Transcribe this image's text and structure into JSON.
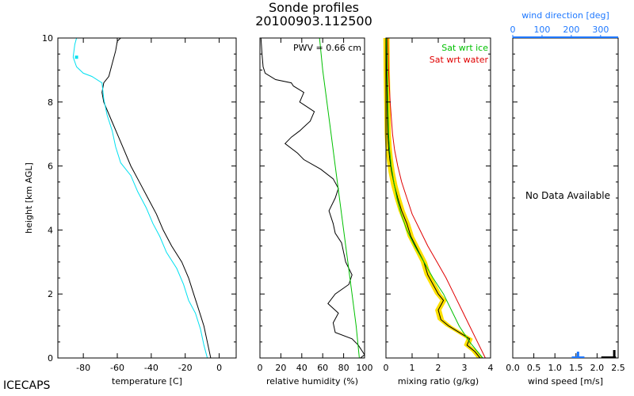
{
  "figure": {
    "title_line1": "Sonde profiles",
    "title_line2": "20100903.112500",
    "branding": "ICECAPS",
    "y_axis_label": "height [km AGL]",
    "y_ticks": [
      "0",
      "2",
      "4",
      "6",
      "8",
      "10"
    ]
  },
  "colors": {
    "temperature": "#000000",
    "dewpoint": "#00e0f0",
    "rh": "#000000",
    "rh_ice": "#00c000",
    "mixing_ratio": "#000000",
    "sat_ice": "#00c000",
    "sat_water": "#e00000",
    "uncertainty": "#ffe000",
    "wind_direction": "#1e78ff",
    "wind_speed": "#000000"
  },
  "chart_data": [
    {
      "type": "line",
      "id": "temperature",
      "xlabel": "temperature [C]",
      "ylabel": "height [km AGL]",
      "xlim": [
        -95,
        10
      ],
      "ylim": [
        0,
        10
      ],
      "x_ticks": [
        "-80",
        "-60",
        "-40",
        "-20",
        "0"
      ],
      "x_tick_values": [
        -80,
        -60,
        -40,
        -20,
        0
      ],
      "series": [
        {
          "key": "temperature",
          "points": [
            [
              -5,
              0
            ],
            [
              -7,
              0.5
            ],
            [
              -9,
              1
            ],
            [
              -12,
              1.5
            ],
            [
              -15,
              2
            ],
            [
              -18,
              2.5
            ],
            [
              -22,
              3
            ],
            [
              -28,
              3.5
            ],
            [
              -33,
              4
            ],
            [
              -37,
              4.5
            ],
            [
              -42,
              5
            ],
            [
              -47,
              5.5
            ],
            [
              -52,
              6
            ],
            [
              -56,
              6.5
            ],
            [
              -60,
              7
            ],
            [
              -64,
              7.5
            ],
            [
              -68,
              8
            ],
            [
              -69,
              8.3
            ],
            [
              -68,
              8.6
            ],
            [
              -65,
              8.8
            ],
            [
              -63,
              9.2
            ],
            [
              -61,
              9.6
            ],
            [
              -60,
              9.9
            ],
            [
              -58,
              10
            ]
          ]
        },
        {
          "key": "dewpoint",
          "points": [
            [
              -7,
              0
            ],
            [
              -9,
              0.4
            ],
            [
              -11,
              0.9
            ],
            [
              -14,
              1.4
            ],
            [
              -18,
              1.8
            ],
            [
              -21,
              2.3
            ],
            [
              -25,
              2.8
            ],
            [
              -31,
              3.3
            ],
            [
              -35,
              3.8
            ],
            [
              -39,
              4.2
            ],
            [
              -43,
              4.7
            ],
            [
              -48,
              5.2
            ],
            [
              -52,
              5.7
            ],
            [
              -58,
              6.1
            ],
            [
              -61,
              6.6
            ],
            [
              -63,
              7.1
            ],
            [
              -66,
              7.6
            ],
            [
              -68,
              8.1
            ],
            [
              -69,
              8.6
            ],
            [
              -75,
              8.8
            ],
            [
              -80,
              8.9
            ],
            [
              -84,
              9.1
            ],
            [
              -86,
              9.4
            ],
            [
              -85,
              9.8
            ],
            [
              -84,
              10
            ]
          ]
        }
      ]
    },
    {
      "type": "line",
      "id": "relative_humidity",
      "xlabel": "relative humidity (%)",
      "ylabel": "",
      "xlim": [
        0,
        100
      ],
      "ylim": [
        0,
        10
      ],
      "x_ticks": [
        "0",
        "20",
        "40",
        "60",
        "80",
        "100"
      ],
      "x_tick_values": [
        0,
        20,
        40,
        60,
        80,
        100
      ],
      "annotation": "PWV = 0.66 cm",
      "series": [
        {
          "key": "rh",
          "points": [
            [
              96,
              0
            ],
            [
              100,
              0.1
            ],
            [
              98,
              0.2
            ],
            [
              94,
              0.4
            ],
            [
              88,
              0.6
            ],
            [
              72,
              0.8
            ],
            [
              70,
              1.1
            ],
            [
              75,
              1.4
            ],
            [
              65,
              1.7
            ],
            [
              72,
              2
            ],
            [
              85,
              2.3
            ],
            [
              88,
              2.6
            ],
            [
              82,
              3
            ],
            [
              80,
              3.3
            ],
            [
              78,
              3.6
            ],
            [
              72,
              3.9
            ],
            [
              70,
              4.2
            ],
            [
              66,
              4.6
            ],
            [
              72,
              5
            ],
            [
              75,
              5.3
            ],
            [
              70,
              5.6
            ],
            [
              58,
              5.9
            ],
            [
              42,
              6.2
            ],
            [
              36,
              6.4
            ],
            [
              24,
              6.7
            ],
            [
              30,
              6.9
            ],
            [
              38,
              7.1
            ],
            [
              48,
              7.4
            ],
            [
              52,
              7.7
            ],
            [
              38,
              8
            ],
            [
              42,
              8.3
            ],
            [
              32,
              8.5
            ],
            [
              30,
              8.6
            ],
            [
              15,
              8.7
            ],
            [
              5,
              8.9
            ],
            [
              3,
              9.1
            ],
            [
              2,
              9.5
            ],
            [
              1,
              10
            ]
          ]
        },
        {
          "key": "rh_ice",
          "points": [
            [
              95,
              0
            ],
            [
              92,
              1
            ],
            [
              88,
              2
            ],
            [
              84,
              3
            ],
            [
              80,
              4
            ],
            [
              76,
              5
            ],
            [
              72,
              6
            ],
            [
              68,
              7
            ],
            [
              64,
              8
            ],
            [
              60,
              9
            ],
            [
              57,
              10
            ]
          ]
        }
      ]
    },
    {
      "type": "line",
      "id": "mixing_ratio",
      "xlabel": "mixing ratio (g/kg)",
      "ylabel": "",
      "xlim": [
        0,
        4
      ],
      "ylim": [
        0,
        10
      ],
      "x_ticks": [
        "0",
        "1",
        "2",
        "3",
        "4"
      ],
      "x_tick_values": [
        0,
        1,
        2,
        3,
        4
      ],
      "legend": [
        "Sat wrt ice",
        "Sat wrt water"
      ],
      "series": [
        {
          "key": "mixing_ratio",
          "points": [
            [
              3.6,
              0
            ],
            [
              3.4,
              0.2
            ],
            [
              3.1,
              0.4
            ],
            [
              3.2,
              0.6
            ],
            [
              2.8,
              0.8
            ],
            [
              2.4,
              1
            ],
            [
              2.1,
              1.2
            ],
            [
              2.0,
              1.5
            ],
            [
              2.2,
              1.8
            ],
            [
              2.0,
              2
            ],
            [
              1.8,
              2.3
            ],
            [
              1.6,
              2.6
            ],
            [
              1.45,
              3
            ],
            [
              1.2,
              3.4
            ],
            [
              0.95,
              3.8
            ],
            [
              0.8,
              4.2
            ],
            [
              0.6,
              4.6
            ],
            [
              0.45,
              5
            ],
            [
              0.32,
              5.4
            ],
            [
              0.22,
              5.8
            ],
            [
              0.15,
              6.2
            ],
            [
              0.1,
              6.6
            ],
            [
              0.07,
              7
            ],
            [
              0.05,
              8
            ],
            [
              0.03,
              9
            ],
            [
              0.02,
              10
            ]
          ]
        },
        {
          "key": "sat_ice",
          "points": [
            [
              3.7,
              0
            ],
            [
              3.2,
              0.5
            ],
            [
              2.8,
              1
            ],
            [
              2.5,
              1.5
            ],
            [
              2.2,
              2
            ],
            [
              1.8,
              2.5
            ],
            [
              1.45,
              3
            ],
            [
              1.1,
              3.5
            ],
            [
              0.8,
              4
            ],
            [
              0.58,
              4.5
            ],
            [
              0.42,
              5
            ],
            [
              0.3,
              5.5
            ],
            [
              0.2,
              6
            ],
            [
              0.14,
              6.5
            ],
            [
              0.1,
              7
            ],
            [
              0.07,
              8
            ],
            [
              0.05,
              9
            ],
            [
              0.03,
              10
            ]
          ]
        },
        {
          "key": "sat_water",
          "points": [
            [
              3.8,
              0
            ],
            [
              3.5,
              0.5
            ],
            [
              3.2,
              1
            ],
            [
              2.9,
              1.5
            ],
            [
              2.6,
              2
            ],
            [
              2.3,
              2.5
            ],
            [
              1.95,
              3
            ],
            [
              1.6,
              3.5
            ],
            [
              1.3,
              4
            ],
            [
              1.0,
              4.5
            ],
            [
              0.8,
              5
            ],
            [
              0.6,
              5.5
            ],
            [
              0.45,
              6
            ],
            [
              0.33,
              6.5
            ],
            [
              0.25,
              7
            ],
            [
              0.16,
              8
            ],
            [
              0.1,
              9
            ],
            [
              0.07,
              10
            ]
          ]
        }
      ],
      "band_halfwidth": 0.12
    },
    {
      "type": "line",
      "id": "wind",
      "xlabel": "wind speed [m/s]",
      "x2label": "wind direction [deg]",
      "ylabel": "",
      "xlim": [
        0,
        2.5
      ],
      "x2lim": [
        0,
        360
      ],
      "ylim": [
        0,
        10
      ],
      "x_ticks": [
        "0.0",
        "0.5",
        "1.0",
        "1.5",
        "2.0",
        "2.5"
      ],
      "x_tick_values": [
        0,
        0.5,
        1.0,
        1.5,
        2.0,
        2.5
      ],
      "x2_ticks": [
        "0",
        "100",
        "200",
        "300"
      ],
      "x2_tick_values": [
        0,
        100,
        200,
        300
      ],
      "annotation": "No Data Available",
      "series": []
    }
  ]
}
